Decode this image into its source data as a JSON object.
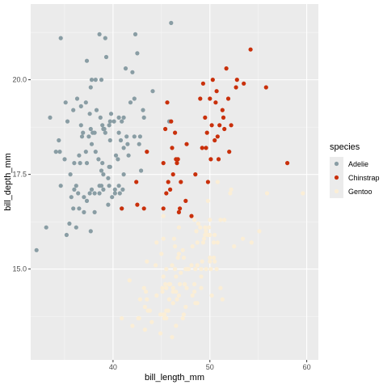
{
  "chart_data": {
    "type": "scatter",
    "title": "",
    "xlabel": "bill_length_mm",
    "ylabel": "bill_depth_mm",
    "xlim": [
      31.5,
      61.2
    ],
    "ylim": [
      12.6,
      22.0
    ],
    "x_ticks": [
      40,
      50,
      60
    ],
    "y_ticks": [
      15.0,
      17.5,
      20.0
    ],
    "x_tick_labels": [
      "40",
      "50",
      "60"
    ],
    "y_tick_labels": [
      "15.0",
      "17.5",
      "20.0"
    ],
    "grid": true,
    "legend_position": "right",
    "legend_title": "species",
    "series": [
      {
        "name": "Adelie",
        "color": "#899da4",
        "points": [
          [
            32.1,
            15.5
          ],
          [
            33.1,
            16.1
          ],
          [
            33.5,
            19.0
          ],
          [
            34.1,
            18.1
          ],
          [
            34.4,
            18.4
          ],
          [
            34.5,
            18.1
          ],
          [
            34.6,
            17.2
          ],
          [
            34.6,
            21.1
          ],
          [
            35.0,
            17.9
          ],
          [
            35.1,
            19.4
          ],
          [
            35.2,
            15.9
          ],
          [
            35.3,
            18.9
          ],
          [
            35.5,
            16.2
          ],
          [
            35.6,
            17.5
          ],
          [
            35.7,
            16.9
          ],
          [
            35.9,
            16.6
          ],
          [
            35.9,
            19.2
          ],
          [
            36.0,
            17.1
          ],
          [
            36.0,
            17.8
          ],
          [
            36.2,
            16.1
          ],
          [
            36.2,
            17.2
          ],
          [
            36.3,
            19.5
          ],
          [
            36.4,
            17.0
          ],
          [
            36.5,
            16.6
          ],
          [
            36.5,
            18.0
          ],
          [
            36.6,
            17.8
          ],
          [
            36.7,
            18.8
          ],
          [
            36.7,
            19.3
          ],
          [
            36.8,
            18.5
          ],
          [
            36.9,
            18.6
          ],
          [
            37.0,
            16.5
          ],
          [
            37.0,
            16.9
          ],
          [
            37.2,
            18.1
          ],
          [
            37.2,
            19.4
          ],
          [
            37.3,
            16.8
          ],
          [
            37.3,
            17.8
          ],
          [
            37.3,
            20.5
          ],
          [
            37.5,
            18.5
          ],
          [
            37.6,
            17.0
          ],
          [
            37.6,
            19.1
          ],
          [
            37.7,
            16.0
          ],
          [
            37.7,
            18.7
          ],
          [
            37.7,
            19.8
          ],
          [
            37.8,
            17.1
          ],
          [
            37.8,
            18.3
          ],
          [
            37.8,
            20.0
          ],
          [
            37.9,
            18.6
          ],
          [
            38.1,
            16.5
          ],
          [
            38.1,
            17.0
          ],
          [
            38.1,
            18.6
          ],
          [
            38.2,
            18.1
          ],
          [
            38.2,
            20.0
          ],
          [
            38.3,
            19.2
          ],
          [
            38.5,
            17.9
          ],
          [
            38.6,
            17.0
          ],
          [
            38.6,
            17.2
          ],
          [
            38.6,
            21.2
          ],
          [
            38.7,
            19.0
          ],
          [
            38.8,
            17.2
          ],
          [
            38.8,
            17.6
          ],
          [
            38.8,
            20.0
          ],
          [
            38.9,
            17.8
          ],
          [
            38.9,
            18.8
          ],
          [
            39.0,
            17.1
          ],
          [
            39.0,
            17.5
          ],
          [
            39.0,
            18.7
          ],
          [
            39.1,
            18.7
          ],
          [
            39.2,
            18.6
          ],
          [
            39.2,
            21.1
          ],
          [
            39.3,
            20.6
          ],
          [
            39.5,
            16.7
          ],
          [
            39.5,
            17.4
          ],
          [
            39.6,
            17.2
          ],
          [
            39.6,
            17.7
          ],
          [
            39.6,
            18.8
          ],
          [
            39.7,
            17.7
          ],
          [
            39.7,
            18.4
          ],
          [
            39.7,
            18.9
          ],
          [
            39.8,
            19.1
          ],
          [
            39.9,
            16.9
          ],
          [
            40.1,
            18.9
          ],
          [
            40.2,
            17.0
          ],
          [
            40.2,
            17.1
          ],
          [
            40.3,
            18.0
          ],
          [
            40.5,
            17.9
          ],
          [
            40.6,
            17.2
          ],
          [
            40.6,
            18.6
          ],
          [
            40.6,
            19.0
          ],
          [
            40.7,
            17.0
          ],
          [
            40.8,
            18.4
          ],
          [
            40.9,
            16.6
          ],
          [
            40.9,
            18.9
          ],
          [
            41.0,
            17.1
          ],
          [
            41.1,
            17.5
          ],
          [
            41.1,
            18.2
          ],
          [
            41.1,
            19.0
          ],
          [
            41.3,
            20.3
          ],
          [
            41.4,
            18.5
          ],
          [
            41.5,
            18.3
          ],
          [
            41.6,
            18.0
          ],
          [
            41.8,
            19.4
          ],
          [
            42.0,
            20.2
          ],
          [
            42.2,
            18.5
          ],
          [
            42.2,
            19.5
          ],
          [
            42.3,
            21.2
          ],
          [
            42.5,
            20.7
          ],
          [
            42.7,
            18.3
          ],
          [
            42.8,
            18.5
          ],
          [
            42.9,
            17.6
          ],
          [
            43.1,
            19.2
          ],
          [
            43.2,
            19.0
          ],
          [
            44.1,
            19.7
          ],
          [
            45.8,
            18.9
          ],
          [
            46.0,
            21.5
          ]
        ]
      },
      {
        "name": "Chinstrap",
        "color": "#c9300b",
        "points": [
          [
            40.9,
            16.6
          ],
          [
            42.4,
            17.3
          ],
          [
            42.5,
            16.7
          ],
          [
            43.2,
            16.6
          ],
          [
            43.5,
            18.1
          ],
          [
            45.2,
            16.6
          ],
          [
            45.2,
            17.8
          ],
          [
            45.4,
            18.7
          ],
          [
            45.5,
            17.0
          ],
          [
            45.6,
            19.4
          ],
          [
            45.7,
            17.3
          ],
          [
            45.9,
            17.1
          ],
          [
            46.0,
            18.9
          ],
          [
            46.1,
            18.2
          ],
          [
            46.2,
            17.5
          ],
          [
            46.4,
            18.6
          ],
          [
            46.5,
            17.9
          ],
          [
            46.6,
            17.8
          ],
          [
            46.7,
            17.9
          ],
          [
            46.8,
            16.5
          ],
          [
            46.9,
            16.6
          ],
          [
            47.0,
            17.3
          ],
          [
            47.5,
            16.8
          ],
          [
            47.6,
            18.3
          ],
          [
            48.1,
            16.4
          ],
          [
            48.5,
            17.5
          ],
          [
            49.0,
            19.5
          ],
          [
            49.2,
            18.2
          ],
          [
            49.3,
            19.9
          ],
          [
            49.5,
            19.0
          ],
          [
            49.6,
            18.2
          ],
          [
            49.7,
            18.6
          ],
          [
            49.8,
            17.3
          ],
          [
            50.0,
            19.5
          ],
          [
            50.1,
            17.9
          ],
          [
            50.2,
            18.8
          ],
          [
            50.3,
            20.0
          ],
          [
            50.5,
            18.4
          ],
          [
            50.6,
            19.4
          ],
          [
            50.7,
            19.7
          ],
          [
            50.8,
            18.5
          ],
          [
            50.9,
            17.9
          ],
          [
            51.0,
            18.8
          ],
          [
            51.3,
            19.2
          ],
          [
            51.4,
            19.0
          ],
          [
            51.5,
            18.7
          ],
          [
            51.7,
            20.3
          ],
          [
            51.9,
            19.5
          ],
          [
            52.0,
            18.1
          ],
          [
            52.2,
            18.8
          ],
          [
            52.7,
            19.8
          ],
          [
            52.8,
            20.0
          ],
          [
            53.5,
            19.9
          ],
          [
            54.2,
            20.8
          ],
          [
            55.8,
            19.8
          ],
          [
            58.0,
            17.8
          ]
        ]
      },
      {
        "name": "Gentoo",
        "color": "#fbeed6",
        "points": [
          [
            40.9,
            13.7
          ],
          [
            41.7,
            14.7
          ],
          [
            42.0,
            13.5
          ],
          [
            42.6,
            13.7
          ],
          [
            42.7,
            13.7
          ],
          [
            42.8,
            14.2
          ],
          [
            43.2,
            14.5
          ],
          [
            43.3,
            13.4
          ],
          [
            43.3,
            14.0
          ],
          [
            43.4,
            14.4
          ],
          [
            43.5,
            14.2
          ],
          [
            43.5,
            15.2
          ],
          [
            43.6,
            13.9
          ],
          [
            43.8,
            13.9
          ],
          [
            44.0,
            13.6
          ],
          [
            44.4,
            15.1
          ],
          [
            44.5,
            14.3
          ],
          [
            44.5,
            15.7
          ],
          [
            44.9,
            13.3
          ],
          [
            44.9,
            13.8
          ],
          [
            45.0,
            15.4
          ],
          [
            45.1,
            14.4
          ],
          [
            45.1,
            14.5
          ],
          [
            45.2,
            13.8
          ],
          [
            45.2,
            14.8
          ],
          [
            45.2,
            15.8
          ],
          [
            45.2,
            16.4
          ],
          [
            45.3,
            13.7
          ],
          [
            45.3,
            13.8
          ],
          [
            45.4,
            14.6
          ],
          [
            45.5,
            13.7
          ],
          [
            45.5,
            13.9
          ],
          [
            45.5,
            14.5
          ],
          [
            45.5,
            15.0
          ],
          [
            45.7,
            13.9
          ],
          [
            45.8,
            14.2
          ],
          [
            45.8,
            14.6
          ],
          [
            45.9,
            14.6
          ],
          [
            46.1,
            13.2
          ],
          [
            46.1,
            15.1
          ],
          [
            46.2,
            14.1
          ],
          [
            46.2,
            14.4
          ],
          [
            46.2,
            14.5
          ],
          [
            46.3,
            15.8
          ],
          [
            46.4,
            15.0
          ],
          [
            46.4,
            15.6
          ],
          [
            46.5,
            13.5
          ],
          [
            46.5,
            14.4
          ],
          [
            46.5,
            14.8
          ],
          [
            46.6,
            14.2
          ],
          [
            46.7,
            15.3
          ],
          [
            46.8,
            14.3
          ],
          [
            46.8,
            15.4
          ],
          [
            46.8,
            16.1
          ],
          [
            46.9,
            14.6
          ],
          [
            47.0,
            14.9
          ],
          [
            47.2,
            13.7
          ],
          [
            47.2,
            15.5
          ],
          [
            47.3,
            13.8
          ],
          [
            47.3,
            15.3
          ],
          [
            47.4,
            14.6
          ],
          [
            47.5,
            14.0
          ],
          [
            47.5,
            15.0
          ],
          [
            47.6,
            14.5
          ],
          [
            47.7,
            15.0
          ],
          [
            47.8,
            15.0
          ],
          [
            48.1,
            15.1
          ],
          [
            48.2,
            14.3
          ],
          [
            48.2,
            15.6
          ],
          [
            48.4,
            14.4
          ],
          [
            48.4,
            14.6
          ],
          [
            48.4,
            16.3
          ],
          [
            48.5,
            14.1
          ],
          [
            48.5,
            15.0
          ],
          [
            48.6,
            16.0
          ],
          [
            48.7,
            14.1
          ],
          [
            48.7,
            15.1
          ],
          [
            48.7,
            15.7
          ],
          [
            48.8,
            16.2
          ],
          [
            49.0,
            16.1
          ],
          [
            49.1,
            14.5
          ],
          [
            49.1,
            14.8
          ],
          [
            49.1,
            15.0
          ],
          [
            49.2,
            15.2
          ],
          [
            49.3,
            15.7
          ],
          [
            49.4,
            15.8
          ],
          [
            49.5,
            15.9
          ],
          [
            49.5,
            16.1
          ],
          [
            49.6,
            15.0
          ],
          [
            49.6,
            16.0
          ],
          [
            49.8,
            15.9
          ],
          [
            49.8,
            16.8
          ],
          [
            49.9,
            16.1
          ],
          [
            50.0,
            15.2
          ],
          [
            50.0,
            15.3
          ],
          [
            50.0,
            15.9
          ],
          [
            50.0,
            16.3
          ],
          [
            50.1,
            15.0
          ],
          [
            50.2,
            14.3
          ],
          [
            50.4,
            15.3
          ],
          [
            50.4,
            15.7
          ],
          [
            50.5,
            15.2
          ],
          [
            50.5,
            15.9
          ],
          [
            50.7,
            15.0
          ],
          [
            50.8,
            15.7
          ],
          [
            50.8,
            17.3
          ],
          [
            51.1,
            14.5
          ],
          [
            51.1,
            16.3
          ],
          [
            51.3,
            14.2
          ],
          [
            51.5,
            16.3
          ],
          [
            52.1,
            17.0
          ],
          [
            52.2,
            17.1
          ],
          [
            52.5,
            15.6
          ],
          [
            53.4,
            15.8
          ],
          [
            54.3,
            15.7
          ],
          [
            55.1,
            16.0
          ],
          [
            55.9,
            17.0
          ],
          [
            59.6,
            17.0
          ]
        ]
      }
    ]
  }
}
